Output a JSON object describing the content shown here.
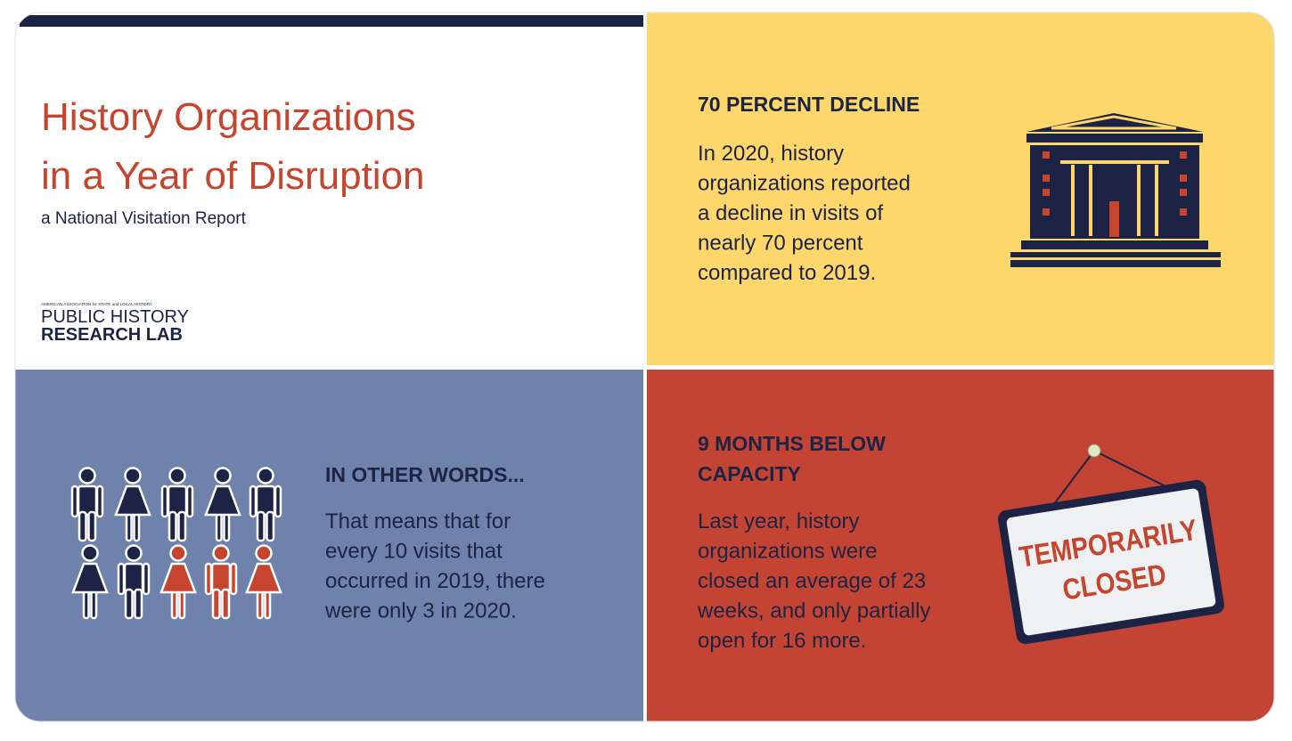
{
  "header": {
    "title_lines": [
      "History Organizations",
      "in a Year of Disruption"
    ],
    "subtitle": "a National Visitation Report"
  },
  "logo": {
    "tagline": "AMERICAN ASSOCIATION for STATE and LOCAL HISTORY",
    "lines": [
      "PUBLIC HISTORY",
      "RESEARCH LAB"
    ]
  },
  "panels": [
    {
      "heading_lines": [
        "70 PERCENT DECLINE"
      ],
      "body_lines": [
        "In 2020, history",
        "organizations reported",
        "a decline in visits of",
        "nearly 70 percent",
        "compared to 2019."
      ]
    },
    {
      "heading_lines": [
        "IN OTHER WORDS..."
      ],
      "body_lines": [
        "That means that for",
        "every 10 visits that",
        "occurred in 2019, there",
        "were only 3 in 2020."
      ]
    },
    {
      "heading_lines": [
        "9 MONTHS BELOW",
        "CAPACITY"
      ],
      "body_lines": [
        "Last year, history",
        "organizations were",
        "closed an average of 23",
        "weeks, and only partially",
        "open for 16 more."
      ]
    }
  ],
  "sign": {
    "lines": [
      "TEMPORARILY",
      "CLOSED"
    ]
  }
}
